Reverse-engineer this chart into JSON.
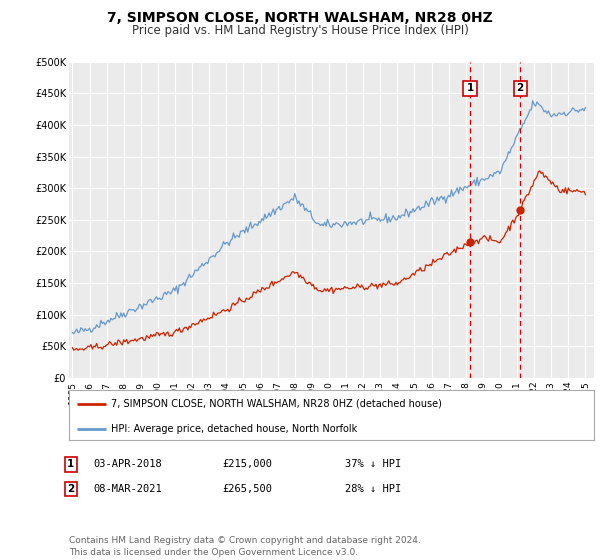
{
  "title": "7, SIMPSON CLOSE, NORTH WALSHAM, NR28 0HZ",
  "subtitle": "Price paid vs. HM Land Registry's House Price Index (HPI)",
  "title_fontsize": 10,
  "subtitle_fontsize": 8.5,
  "background_color": "#ffffff",
  "plot_bg_color": "#ebebeb",
  "grid_color": "#ffffff",
  "ylim": [
    0,
    500000
  ],
  "yticks": [
    0,
    50000,
    100000,
    150000,
    200000,
    250000,
    300000,
    350000,
    400000,
    450000,
    500000
  ],
  "ytick_labels": [
    "£0",
    "£50K",
    "£100K",
    "£150K",
    "£200K",
    "£250K",
    "£300K",
    "£350K",
    "£400K",
    "£450K",
    "£500K"
  ],
  "xmin": 1994.8,
  "xmax": 2025.5,
  "xticks": [
    1995,
    1996,
    1997,
    1998,
    1999,
    2000,
    2001,
    2002,
    2003,
    2004,
    2005,
    2006,
    2007,
    2008,
    2009,
    2010,
    2011,
    2012,
    2013,
    2014,
    2015,
    2016,
    2017,
    2018,
    2019,
    2020,
    2021,
    2022,
    2023,
    2024,
    2025
  ],
  "hpi_color": "#6699cc",
  "price_color": "#cc2200",
  "marker_color": "#cc2200",
  "vline_color": "#cc0000",
  "legend_label_price": "7, SIMPSON CLOSE, NORTH WALSHAM, NR28 0HZ (detached house)",
  "legend_label_hpi": "HPI: Average price, detached house, North Norfolk",
  "transaction1_date": "03-APR-2018",
  "transaction1_price": "£215,000",
  "transaction1_pct": "37% ↓ HPI",
  "transaction1_x": 2018.25,
  "transaction1_y": 215000,
  "transaction2_date": "08-MAR-2021",
  "transaction2_price": "£265,500",
  "transaction2_pct": "28% ↓ HPI",
  "transaction2_x": 2021.18,
  "transaction2_y": 265500,
  "footer": "Contains HM Land Registry data © Crown copyright and database right 2024.\nThis data is licensed under the Open Government Licence v3.0.",
  "footer_fontsize": 6.5
}
